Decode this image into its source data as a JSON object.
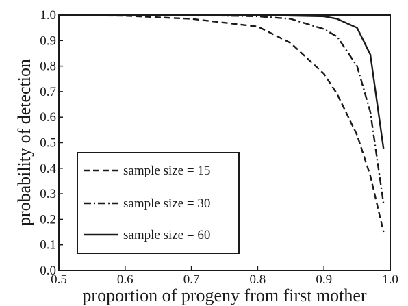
{
  "chart_data": {
    "type": "line",
    "title": "",
    "xlabel": "proportion of progeny from first mother",
    "ylabel": "probability of detection",
    "xlim": [
      0.5,
      1.0
    ],
    "ylim": [
      0.0,
      1.0
    ],
    "xticks": [
      "0.5",
      "0.6",
      "0.7",
      "0.8",
      "0.9",
      "1.0"
    ],
    "yticks": [
      "0.0",
      "0.1",
      "0.2",
      "0.3",
      "0.4",
      "0.5",
      "0.6",
      "0.7",
      "0.8",
      "0.9",
      "1.0"
    ],
    "grid": false,
    "legend_position": "bottom-left",
    "series": [
      {
        "name": "sample size = 15",
        "style": "dashed",
        "color": "#1a1a1a",
        "x": [
          0.5,
          0.6,
          0.7,
          0.8,
          0.85,
          0.9,
          0.92,
          0.95,
          0.97,
          0.99
        ],
        "y": [
          1.0,
          0.997,
          0.985,
          0.955,
          0.89,
          0.77,
          0.69,
          0.53,
          0.37,
          0.15
        ]
      },
      {
        "name": "sample size = 30",
        "style": "dashdot",
        "color": "#1a1a1a",
        "x": [
          0.5,
          0.6,
          0.7,
          0.8,
          0.85,
          0.9,
          0.92,
          0.95,
          0.97,
          0.99
        ],
        "y": [
          1.0,
          1.0,
          1.0,
          0.995,
          0.985,
          0.945,
          0.915,
          0.8,
          0.62,
          0.26
        ]
      },
      {
        "name": "sample size = 60",
        "style": "solid",
        "color": "#1a1a1a",
        "x": [
          0.5,
          0.6,
          0.7,
          0.8,
          0.9,
          0.92,
          0.95,
          0.97,
          0.99
        ],
        "y": [
          1.0,
          1.0,
          1.0,
          1.0,
          0.995,
          0.985,
          0.95,
          0.845,
          0.475
        ]
      }
    ]
  }
}
